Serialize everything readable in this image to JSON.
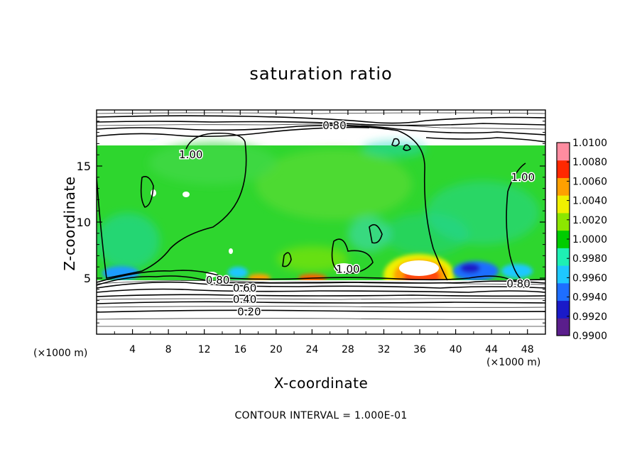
{
  "chart_data": {
    "type": "heatmap",
    "title": "saturation ratio",
    "xlabel": "X-coordinate",
    "ylabel": "Z-coordinate",
    "x_unit": "(×1000 m)",
    "xlim": [
      0,
      50
    ],
    "ylim": [
      0,
      20
    ],
    "x_ticks": [
      4,
      8,
      12,
      16,
      20,
      24,
      28,
      32,
      36,
      40,
      44,
      48
    ],
    "y_ticks": [
      5,
      10,
      15
    ],
    "colorbar": {
      "levels": [
        "0.9900",
        "0.9920",
        "0.9940",
        "0.9960",
        "0.9980",
        "1.0000",
        "1.0020",
        "1.0040",
        "1.0060",
        "1.0080",
        "1.0100"
      ],
      "colors": [
        "#5a1e8c",
        "#1a1ac8",
        "#1e6eff",
        "#1ec8ff",
        "#1ef0b4",
        "#00cc00",
        "#8ce600",
        "#f0f000",
        "#ffa000",
        "#ff2800",
        "#ff8ca0"
      ]
    },
    "contour_labels": [
      {
        "text": "0.80",
        "x": 26.5,
        "z": 18.6
      },
      {
        "text": "1.00",
        "x": 10.5,
        "z": 16.0
      },
      {
        "text": "1.00",
        "x": 47.5,
        "z": 14.0
      },
      {
        "text": "1.00",
        "x": 28.0,
        "z": 5.8
      },
      {
        "text": "0.80",
        "x": 13.5,
        "z": 4.8
      },
      {
        "text": "0.80",
        "x": 47.0,
        "z": 4.5
      },
      {
        "text": "0.60",
        "x": 16.5,
        "z": 4.1
      },
      {
        "text": "0.40",
        "x": 16.5,
        "z": 3.1
      },
      {
        "text": "0.20",
        "x": 17.0,
        "z": 2.0
      }
    ],
    "footer": "CONTOUR INTERVAL = 1.000E-01"
  }
}
